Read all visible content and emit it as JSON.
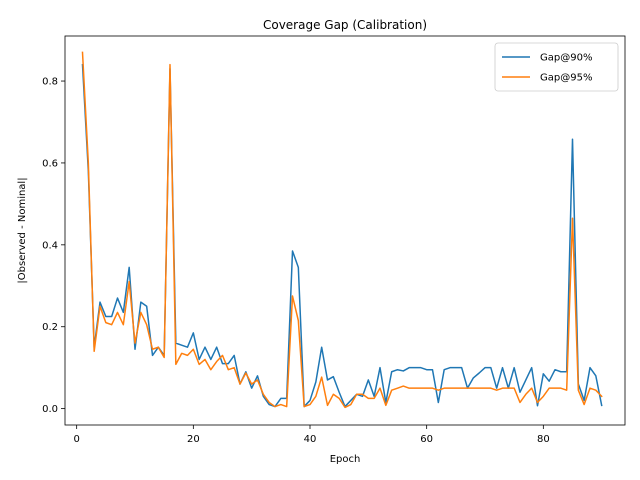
{
  "chart_data": {
    "type": "line",
    "title": "Coverage Gap (Calibration)",
    "xlabel": "Epoch",
    "ylabel": "|Observed - Nominal|",
    "xlim": [
      -2,
      94
    ],
    "ylim": [
      -0.04,
      0.91
    ],
    "xticks": [
      0,
      20,
      40,
      60,
      80
    ],
    "yticks": [
      0.0,
      0.2,
      0.4,
      0.6,
      0.8
    ],
    "legend_position": "top-right",
    "grid": false,
    "x": [
      1,
      2,
      3,
      4,
      5,
      6,
      7,
      8,
      9,
      10,
      11,
      12,
      13,
      14,
      15,
      16,
      17,
      18,
      19,
      20,
      21,
      22,
      23,
      24,
      25,
      26,
      27,
      28,
      29,
      30,
      31,
      32,
      33,
      34,
      35,
      36,
      37,
      38,
      39,
      40,
      41,
      42,
      43,
      44,
      45,
      46,
      47,
      48,
      49,
      50,
      51,
      52,
      53,
      54,
      55,
      56,
      57,
      58,
      59,
      60,
      61,
      62,
      63,
      64,
      65,
      66,
      67,
      68,
      69,
      70,
      71,
      72,
      73,
      74,
      75,
      76,
      77,
      78,
      79,
      80,
      81,
      82,
      83,
      84,
      85,
      86,
      87,
      88,
      89,
      90
    ],
    "series": [
      {
        "name": "Gap@90%",
        "color": "#1f77b4",
        "values": [
          0.84,
          0.58,
          0.15,
          0.26,
          0.225,
          0.225,
          0.27,
          0.235,
          0.345,
          0.145,
          0.26,
          0.25,
          0.13,
          0.15,
          0.13,
          0.83,
          0.16,
          0.155,
          0.15,
          0.185,
          0.12,
          0.15,
          0.12,
          0.15,
          0.11,
          0.11,
          0.13,
          0.06,
          0.09,
          0.05,
          0.08,
          0.03,
          0.01,
          0.005,
          0.025,
          0.025,
          0.385,
          0.345,
          0.005,
          0.02,
          0.065,
          0.15,
          0.07,
          0.078,
          0.04,
          0.005,
          0.02,
          0.035,
          0.03,
          0.07,
          0.03,
          0.1,
          0.015,
          0.09,
          0.095,
          0.092,
          0.1,
          0.1,
          0.1,
          0.095,
          0.095,
          0.015,
          0.095,
          0.1,
          0.1,
          0.1,
          0.05,
          0.075,
          0.087,
          0.1,
          0.1,
          0.05,
          0.1,
          0.05,
          0.1,
          0.04,
          0.07,
          0.1,
          0.007,
          0.085,
          0.067,
          0.095,
          0.09,
          0.09,
          0.658,
          0.06,
          0.02,
          0.1,
          0.08,
          0.008
        ]
      },
      {
        "name": "Gap@95%",
        "color": "#ff7f0e",
        "values": [
          0.87,
          0.6,
          0.14,
          0.25,
          0.21,
          0.205,
          0.235,
          0.205,
          0.31,
          0.16,
          0.235,
          0.205,
          0.145,
          0.15,
          0.125,
          0.84,
          0.108,
          0.135,
          0.13,
          0.145,
          0.108,
          0.12,
          0.095,
          0.115,
          0.13,
          0.095,
          0.1,
          0.06,
          0.087,
          0.06,
          0.07,
          0.035,
          0.015,
          0.005,
          0.01,
          0.005,
          0.275,
          0.215,
          0.005,
          0.01,
          0.03,
          0.077,
          0.008,
          0.035,
          0.025,
          0.003,
          0.01,
          0.035,
          0.035,
          0.025,
          0.025,
          0.05,
          0.008,
          0.045,
          0.05,
          0.055,
          0.05,
          0.05,
          0.05,
          0.05,
          0.05,
          0.045,
          0.05,
          0.05,
          0.05,
          0.05,
          0.05,
          0.05,
          0.05,
          0.05,
          0.05,
          0.045,
          0.05,
          0.05,
          0.05,
          0.015,
          0.035,
          0.05,
          0.015,
          0.03,
          0.05,
          0.05,
          0.05,
          0.045,
          0.465,
          0.045,
          0.01,
          0.05,
          0.045,
          0.03
        ]
      }
    ]
  }
}
